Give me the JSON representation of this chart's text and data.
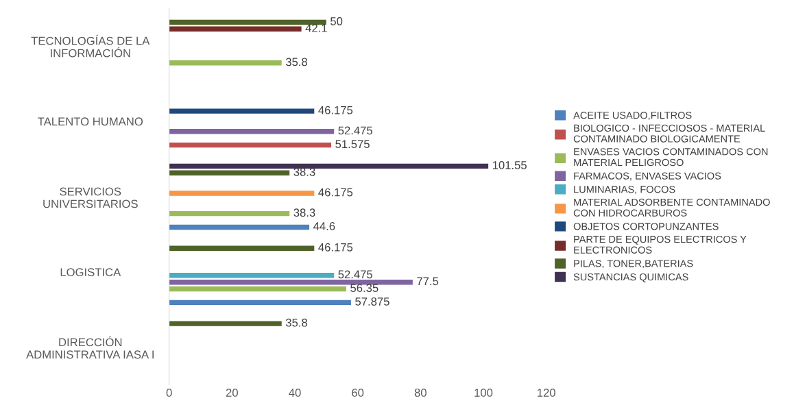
{
  "chart_data": {
    "type": "bar",
    "orientation": "horizontal",
    "categories": [
      "TECNOLOGÍAS DE LA INFORMACIÓN",
      "TALENTO HUMANO",
      "SERVICIOS UNIVERSITARIOS",
      "LOGISTICA",
      "DIRECCIÓN ADMINISTRATIVA IASA I"
    ],
    "series": [
      {
        "name": "ACEITE USADO,FILTROS",
        "color": "#4f81bd",
        "values": [
          null,
          null,
          44.6,
          57.875,
          null
        ]
      },
      {
        "name": "BIOLOGICO - INFECCIOSOS - MATERIAL CONTAMINADO BIOLOGICAMENTE",
        "color": "#c0504d",
        "values": [
          null,
          51.575,
          null,
          null,
          null
        ]
      },
      {
        "name": "ENVASES VACIOS CONTAMINADOS CON MATERIAL PELIGROSO",
        "color": "#9bbb59",
        "values": [
          35.8,
          null,
          38.3,
          56.35,
          null
        ]
      },
      {
        "name": "FARMACOS, ENVASES VACIOS",
        "color": "#8064a2",
        "values": [
          null,
          52.475,
          null,
          77.5,
          null
        ]
      },
      {
        "name": "LUMINARIAS, FOCOS",
        "color": "#4bacc6",
        "values": [
          null,
          null,
          null,
          52.475,
          null
        ]
      },
      {
        "name": "MATERIAL ADSORBENTE CONTAMINADO CON HIDROCARBUROS",
        "color": "#f79646",
        "values": [
          null,
          null,
          46.175,
          null,
          null
        ]
      },
      {
        "name": "OBJETOS CORTOPUNZANTES",
        "color": "#1f497d",
        "values": [
          null,
          46.175,
          null,
          null,
          null
        ]
      },
      {
        "name": "PARTE DE EQUIPOS ELECTRICOS Y ELECTRONICOS",
        "color": "#772c2a",
        "values": [
          42.1,
          null,
          null,
          null,
          null
        ]
      },
      {
        "name": "PILAS, TONER,BATERIAS",
        "color": "#4f6228",
        "values": [
          50,
          null,
          38.3,
          46.175,
          35.8
        ]
      },
      {
        "name": "SUSTANCIAS QUIMICAS",
        "color": "#403152",
        "values": [
          null,
          null,
          101.55,
          null,
          null
        ]
      }
    ],
    "xlim": [
      0,
      120
    ],
    "xticks": [
      0,
      20,
      40,
      60,
      80,
      100,
      120
    ],
    "data_labels": true,
    "grid": false,
    "legend": "right"
  }
}
